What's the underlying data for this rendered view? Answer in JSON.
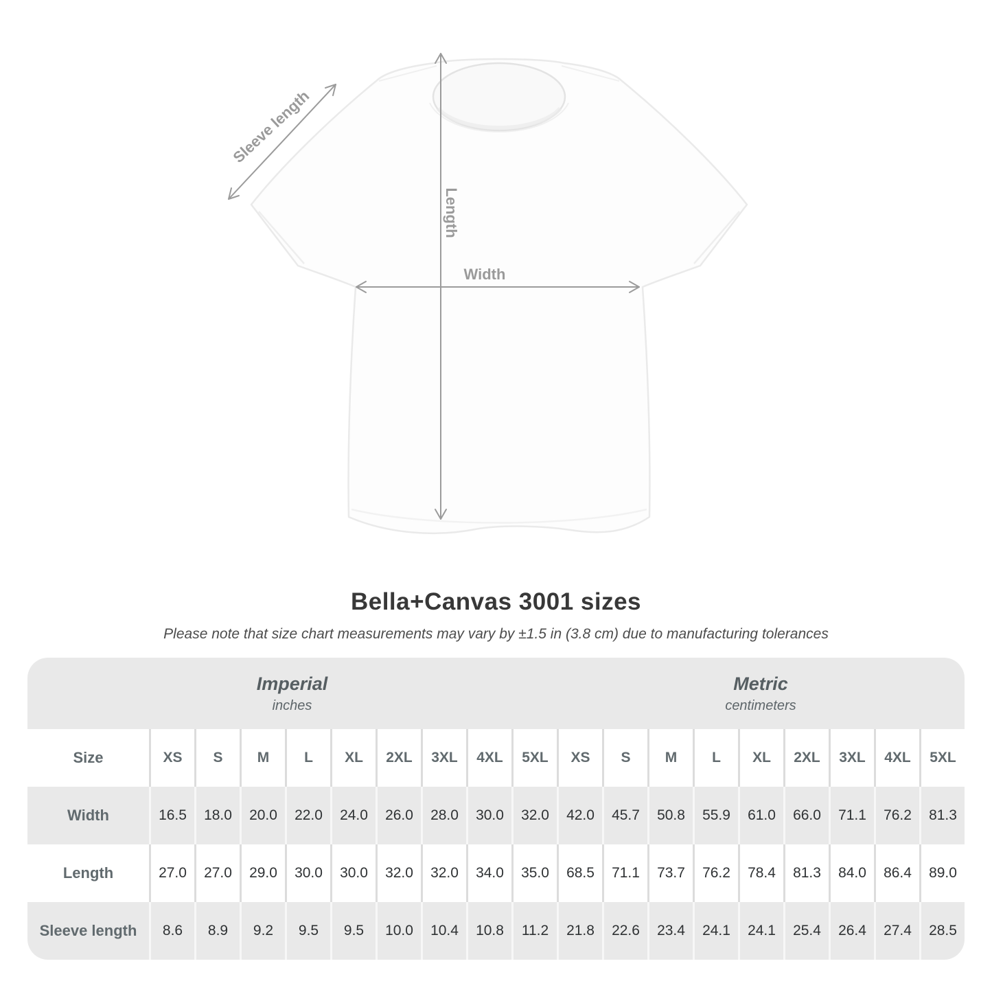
{
  "title": "Bella+Canvas 3001 sizes",
  "subtitle": "Please note that size chart measurements may vary by ±1.5 in (3.8 cm) due to manufacturing tolerances",
  "diagram": {
    "labels": {
      "sleeve": "Sleeve length",
      "length": "Length",
      "width": "Width"
    },
    "arrow_color": "#9b9b9b",
    "label_color": "#9a9a9a"
  },
  "table": {
    "size_header": "Size",
    "groups": [
      {
        "label": "Imperial",
        "sublabel": "inches"
      },
      {
        "label": "Metric",
        "sublabel": "centimeters"
      }
    ],
    "sizes": [
      "XS",
      "S",
      "M",
      "L",
      "XL",
      "2XL",
      "3XL",
      "4XL",
      "5XL"
    ],
    "row_gray": "#e9e9e9"
  },
  "chart_data": {
    "type": "table",
    "title": "Bella+Canvas 3001 sizes",
    "note": "Please note that size chart measurements may vary by ±1.5 in (3.8 cm) due to manufacturing tolerances",
    "unit_groups": [
      {
        "name": "Imperial",
        "unit": "inches"
      },
      {
        "name": "Metric",
        "unit": "centimeters"
      }
    ],
    "sizes": [
      "XS",
      "S",
      "M",
      "L",
      "XL",
      "2XL",
      "3XL",
      "4XL",
      "5XL"
    ],
    "measurements": [
      {
        "label": "Width",
        "imperial": [
          16.5,
          18.0,
          20.0,
          22.0,
          24.0,
          26.0,
          28.0,
          30.0,
          32.0
        ],
        "metric": [
          42.0,
          45.7,
          50.8,
          55.9,
          61.0,
          66.0,
          71.1,
          76.2,
          81.3
        ]
      },
      {
        "label": "Length",
        "imperial": [
          27.0,
          27.0,
          29.0,
          30.0,
          30.0,
          32.0,
          32.0,
          34.0,
          35.0
        ],
        "metric": [
          68.5,
          71.1,
          73.7,
          76.2,
          78.4,
          81.3,
          84.0,
          86.4,
          89.0
        ]
      },
      {
        "label": "Sleeve length",
        "imperial": [
          8.6,
          8.9,
          9.2,
          9.5,
          9.5,
          10.0,
          10.4,
          10.8,
          11.2
        ],
        "metric": [
          21.8,
          22.6,
          23.4,
          24.1,
          24.1,
          25.4,
          26.4,
          27.4,
          28.5
        ]
      }
    ]
  }
}
